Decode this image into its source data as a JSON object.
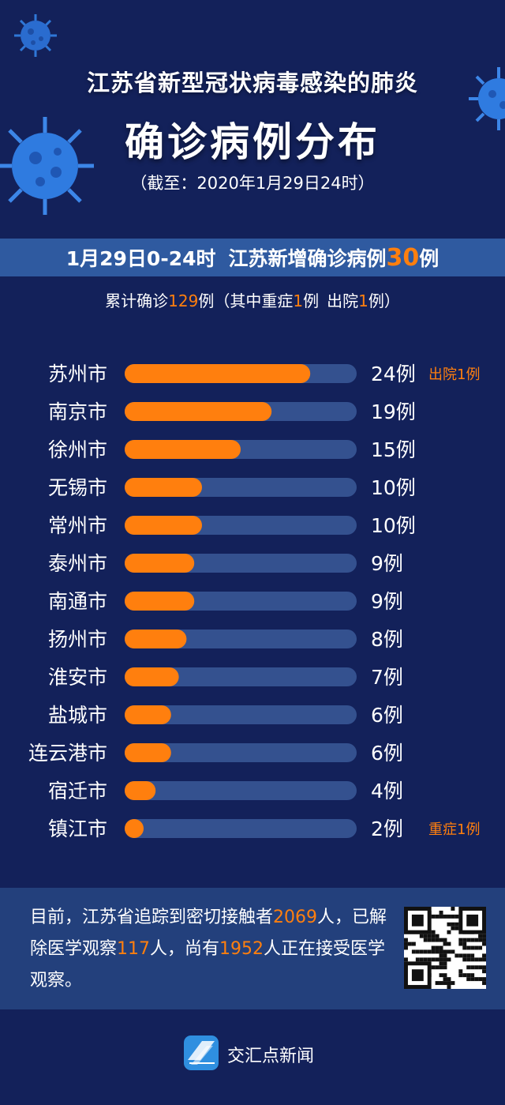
{
  "header": {
    "title_line1": "江苏省新型冠状病毒感染的肺炎",
    "title_line2": "确诊病例分布",
    "as_of": "（截至：2020年1月29日24时）"
  },
  "new_cases": {
    "period": "1月29日0-24时",
    "prefix": "江苏新增确诊病例",
    "count": "30",
    "suffix": "例"
  },
  "cumulative": {
    "prefix": "累计确诊",
    "total": "129",
    "mid1": "例（其中重症",
    "severe": "1",
    "mid2": "例",
    "mid3": "出院",
    "discharged": "1",
    "suffix": "例）"
  },
  "colors": {
    "accent": "#ff7f0e",
    "track": "#34518f",
    "background": "#13215a",
    "band": "#2f5aa0"
  },
  "chart_data": {
    "type": "bar",
    "orientation": "horizontal",
    "categories": [
      "苏州市",
      "南京市",
      "徐州市",
      "无锡市",
      "常州市",
      "泰州市",
      "南通市",
      "扬州市",
      "淮安市",
      "盐城市",
      "连云港市",
      "宿迁市",
      "镇江市"
    ],
    "values": [
      24,
      19,
      15,
      10,
      10,
      9,
      9,
      8,
      7,
      6,
      6,
      4,
      2
    ],
    "value_labels": [
      "24例",
      "19例",
      "15例",
      "10例",
      "10例",
      "9例",
      "9例",
      "8例",
      "7例",
      "6例",
      "6例",
      "4例",
      "2例"
    ],
    "notes": [
      "出院1例",
      "",
      "",
      "",
      "",
      "",
      "",
      "",
      "",
      "",
      "",
      "",
      "重症1例"
    ],
    "xlim": [
      0,
      30
    ]
  },
  "footer": {
    "p1": "目前，江苏省追踪到密切接触者",
    "contacts": "2069",
    "p2": "人，已解除医学观察",
    "released": "117",
    "p3": "人，尚有",
    "observing": "1952",
    "p4": "人正在接受医学观察。",
    "brand": "交汇点新闻",
    "qr_icon": "qr-code-icon",
    "logo_icon": "news-logo-icon"
  }
}
